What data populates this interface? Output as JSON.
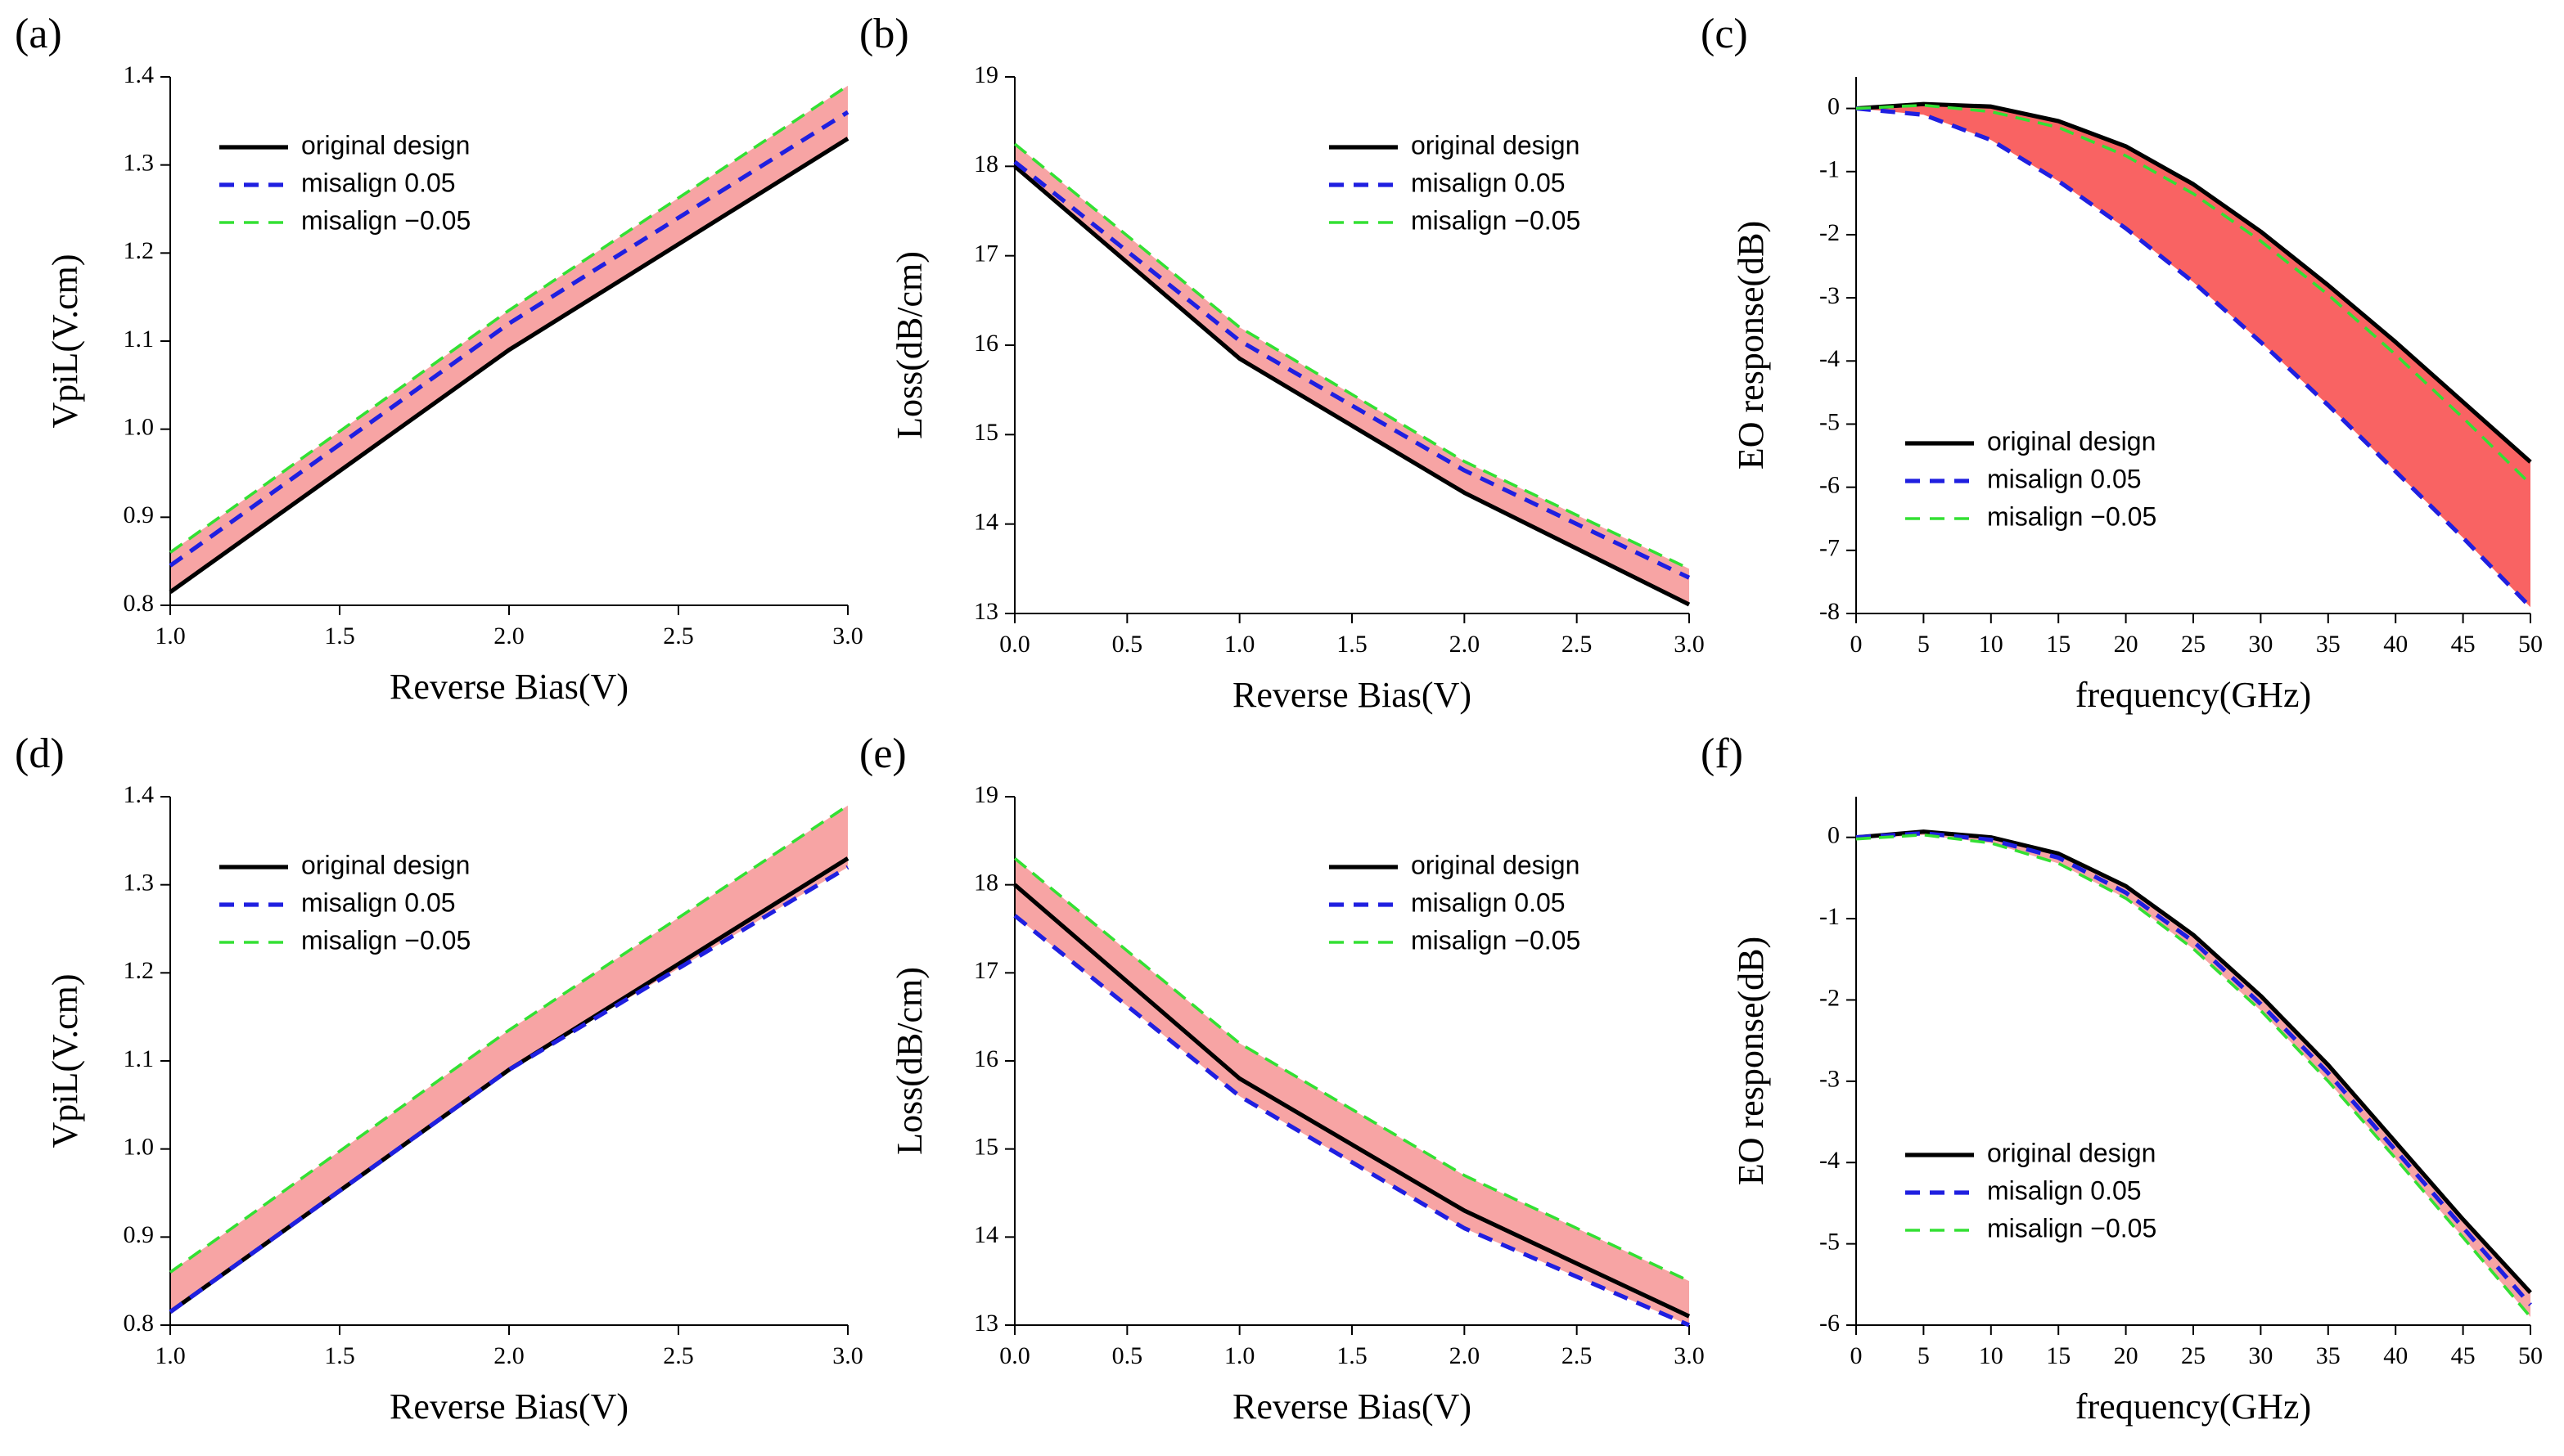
{
  "chart_data": [
    {
      "type": "line",
      "panel_label": "(a)",
      "xlabel": "Reverse Bias(V)",
      "ylabel": "VpiL(V.cm)",
      "x": [
        1,
        2,
        3
      ],
      "xlim": [
        1,
        3
      ],
      "xticks": [
        {
          "value": 1,
          "label": "1.0"
        },
        1.5,
        {
          "value": 2,
          "label": "2.0"
        },
        2.5,
        {
          "value": 3,
          "label": "3.0"
        }
      ],
      "ylim": [
        0.8,
        1.4
      ],
      "yticks": [
        0.8,
        0.9,
        {
          "value": 1,
          "label": "1.0"
        },
        1.1,
        1.2,
        1.3,
        1.4
      ],
      "legend": "upper left",
      "band_color": "#f7a4a4",
      "series": [
        {
          "name": "original design",
          "color": "#000000",
          "dash": false,
          "values": [
            0.815,
            1.09,
            1.33
          ]
        },
        {
          "name": "misalign 0.05",
          "color": "#1f1fe0",
          "dash": true,
          "values": [
            0.845,
            1.12,
            1.36
          ]
        },
        {
          "name": "misalign −0.05",
          "color": "#33e033",
          "dash": true,
          "values": [
            0.86,
            1.135,
            1.39
          ]
        }
      ]
    },
    {
      "type": "line",
      "panel_label": "(b)",
      "xlabel": "Reverse Bias(V)",
      "ylabel": "Loss(dB/cm)",
      "x": [
        0,
        1,
        2,
        3
      ],
      "xlim": [
        0,
        3
      ],
      "xticks": [
        {
          "value": 0,
          "label": "0.0"
        },
        0.5,
        {
          "value": 1,
          "label": "1.0"
        },
        1.5,
        {
          "value": 2,
          "label": "2.0"
        },
        2.5,
        {
          "value": 3,
          "label": "3.0"
        }
      ],
      "ylim": [
        13,
        19
      ],
      "yticks": [
        13,
        14,
        15,
        16,
        17,
        18,
        19
      ],
      "legend": "upper right",
      "band_color": "#f7a4a4",
      "series": [
        {
          "name": "original design",
          "color": "#000000",
          "dash": false,
          "values": [
            18.0,
            15.85,
            14.35,
            13.1
          ]
        },
        {
          "name": "misalign 0.05",
          "color": "#1f1fe0",
          "dash": true,
          "values": [
            18.05,
            16.05,
            14.6,
            13.4
          ]
        },
        {
          "name": "misalign −0.05",
          "color": "#33e033",
          "dash": true,
          "values": [
            18.25,
            16.2,
            14.7,
            13.5
          ]
        }
      ]
    },
    {
      "type": "line",
      "panel_label": "(c)",
      "xlabel": "frequency(GHz)",
      "ylabel": "EO response(dB)",
      "x": [
        0,
        5,
        10,
        15,
        20,
        25,
        30,
        35,
        40,
        45,
        50
      ],
      "xlim": [
        0,
        50
      ],
      "xticks": [
        0,
        5,
        10,
        15,
        20,
        25,
        30,
        35,
        40,
        45,
        50
      ],
      "ylim": [
        -8,
        0.5
      ],
      "yticks": [
        -8,
        -7,
        -6,
        -5,
        -4,
        -3,
        -2,
        -1,
        0
      ],
      "legend": "lower left",
      "band_color": "#f96363",
      "series": [
        {
          "name": "original design",
          "color": "#000000",
          "dash": false,
          "values": [
            0,
            0.07,
            0.03,
            -0.2,
            -0.6,
            -1.2,
            -1.95,
            -2.8,
            -3.7,
            -4.65,
            -5.6
          ]
        },
        {
          "name": "misalign 0.05",
          "color": "#1f1fe0",
          "dash": true,
          "values": [
            0,
            -0.1,
            -0.5,
            -1.15,
            -1.9,
            -2.75,
            -3.7,
            -4.7,
            -5.75,
            -6.8,
            -7.9
          ]
        },
        {
          "name": "misalign −0.05",
          "color": "#33e033",
          "dash": true,
          "values": [
            0,
            0.05,
            -0.05,
            -0.3,
            -0.75,
            -1.35,
            -2.1,
            -2.95,
            -3.9,
            -4.9,
            -5.95
          ]
        }
      ]
    },
    {
      "type": "line",
      "panel_label": "(d)",
      "xlabel": "Reverse Bias(V)",
      "ylabel": "VpiL(V.cm)",
      "x": [
        1,
        2,
        3
      ],
      "xlim": [
        1,
        3
      ],
      "xticks": [
        {
          "value": 1,
          "label": "1.0"
        },
        1.5,
        {
          "value": 2,
          "label": "2.0"
        },
        2.5,
        {
          "value": 3,
          "label": "3.0"
        }
      ],
      "ylim": [
        0.8,
        1.4
      ],
      "yticks": [
        0.8,
        0.9,
        {
          "value": 1,
          "label": "1.0"
        },
        1.1,
        1.2,
        1.3,
        1.4
      ],
      "legend": "upper left",
      "band_color": "#f7a4a4",
      "series": [
        {
          "name": "original design",
          "color": "#000000",
          "dash": false,
          "values": [
            0.815,
            1.09,
            1.33
          ]
        },
        {
          "name": "misalign 0.05",
          "color": "#1f1fe0",
          "dash": true,
          "values": [
            0.815,
            1.09,
            1.32
          ]
        },
        {
          "name": "misalign −0.05",
          "color": "#33e033",
          "dash": true,
          "values": [
            0.86,
            1.135,
            1.39
          ]
        }
      ]
    },
    {
      "type": "line",
      "panel_label": "(e)",
      "xlabel": "Reverse Bias(V)",
      "ylabel": "Loss(dB/cm)",
      "x": [
        0,
        1,
        2,
        3
      ],
      "xlim": [
        0,
        3
      ],
      "xticks": [
        {
          "value": 0,
          "label": "0.0"
        },
        0.5,
        {
          "value": 1,
          "label": "1.0"
        },
        1.5,
        {
          "value": 2,
          "label": "2.0"
        },
        2.5,
        {
          "value": 3,
          "label": "3.0"
        }
      ],
      "ylim": [
        13,
        19
      ],
      "yticks": [
        13,
        14,
        15,
        16,
        17,
        18,
        19
      ],
      "legend": "upper right",
      "band_color": "#f7a4a4",
      "series": [
        {
          "name": "original design",
          "color": "#000000",
          "dash": false,
          "values": [
            18.0,
            15.8,
            14.3,
            13.1
          ]
        },
        {
          "name": "misalign 0.05",
          "color": "#1f1fe0",
          "dash": true,
          "values": [
            17.65,
            15.6,
            14.1,
            13.0
          ]
        },
        {
          "name": "misalign −0.05",
          "color": "#33e033",
          "dash": true,
          "values": [
            18.3,
            16.2,
            14.7,
            13.5
          ]
        }
      ]
    },
    {
      "type": "line",
      "panel_label": "(f)",
      "xlabel": "frequency(GHz)",
      "ylabel": "EO response(dB)",
      "x": [
        0,
        5,
        10,
        15,
        20,
        25,
        30,
        35,
        40,
        45,
        50
      ],
      "xlim": [
        0,
        50
      ],
      "xticks": [
        0,
        5,
        10,
        15,
        20,
        25,
        30,
        35,
        40,
        45,
        50
      ],
      "ylim": [
        -6,
        0.5
      ],
      "yticks": [
        -6,
        -5,
        -4,
        -3,
        -2,
        -1,
        0
      ],
      "legend": "lower left",
      "band_color": "#f7a4a4",
      "series": [
        {
          "name": "original design",
          "color": "#000000",
          "dash": false,
          "values": [
            0,
            0.07,
            0,
            -0.2,
            -0.6,
            -1.2,
            -1.95,
            -2.8,
            -3.75,
            -4.7,
            -5.6
          ]
        },
        {
          "name": "misalign 0.05",
          "color": "#1f1fe0",
          "dash": true,
          "values": [
            0,
            0.05,
            -0.03,
            -0.25,
            -0.68,
            -1.28,
            -2.05,
            -2.9,
            -3.85,
            -4.8,
            -5.75
          ]
        },
        {
          "name": "misalign −0.05",
          "color": "#33e033",
          "dash": true,
          "values": [
            -0.02,
            0.03,
            -0.07,
            -0.32,
            -0.75,
            -1.37,
            -2.13,
            -3.0,
            -3.95,
            -4.92,
            -5.9
          ]
        }
      ]
    }
  ]
}
